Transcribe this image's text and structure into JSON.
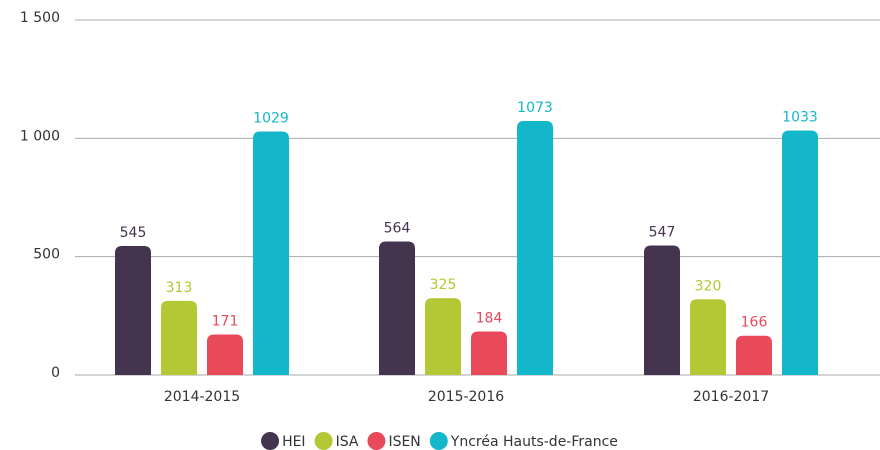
{
  "chart_data": {
    "type": "bar",
    "categories": [
      "2014-2015",
      "2015-2016",
      "2016-2017"
    ],
    "series": [
      {
        "name": "HEI",
        "color": "#45344e",
        "values": [
          545,
          564,
          547
        ]
      },
      {
        "name": "ISA",
        "color": "#b3c834",
        "values": [
          313,
          325,
          320
        ]
      },
      {
        "name": "ISEN",
        "color": "#e84a5a",
        "values": [
          171,
          184,
          166
        ]
      },
      {
        "name": "Yncréa Hauts-de-France",
        "color": "#14b7c9",
        "values": [
          1029,
          1073,
          1033
        ]
      }
    ],
    "ylim": [
      0,
      1500
    ],
    "yticks": [
      0,
      500,
      {
        "value": 1000,
        "label": "1 000"
      },
      {
        "value": 1500,
        "label": "1 500"
      }
    ],
    "grid": true,
    "legend": "bottom"
  }
}
